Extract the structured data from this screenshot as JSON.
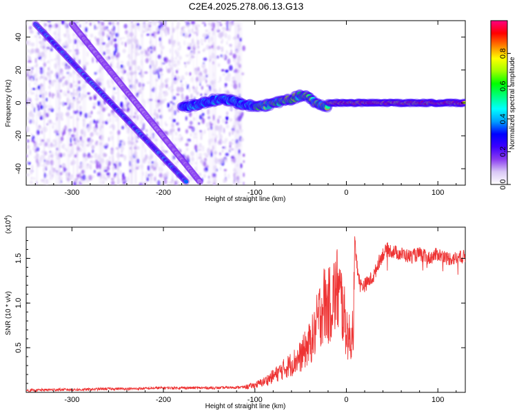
{
  "title": "C2E4.2025.278.06.13.G13",
  "chart_data": [
    {
      "type": "heatmap",
      "xlabel": "Height of straight line (km)",
      "ylabel": "Frequency (Hz)",
      "xlim": [
        -350,
        130
      ],
      "ylim": [
        -50,
        50
      ],
      "x_ticks": [
        -300,
        -200,
        -100,
        0,
        100
      ],
      "y_ticks": [
        -40,
        -20,
        0,
        20,
        40
      ],
      "colorbar": {
        "label": "Normalized spectral amplitude",
        "range": [
          0,
          1
        ],
        "ticks": [
          "0.0",
          "0.2",
          "0.4",
          "0.6",
          "0.8"
        ],
        "colors": [
          "#ffffff",
          "#d9c8f5",
          "#8a3cf0",
          "#3c00ff",
          "#0000ff",
          "#00a0ff",
          "#00ffff",
          "#00ff80",
          "#00ff00",
          "#a0ff00",
          "#ffff00",
          "#ff8000",
          "#ff0000",
          "#ff0080"
        ]
      },
      "features": [
        {
          "name": "primary track",
          "x": [
            -340,
            -175
          ],
          "y": [
            48,
            -48
          ],
          "peak_amplitude": 0.35
        },
        {
          "name": "secondary track",
          "x": [
            -300,
            -160
          ],
          "y": [
            48,
            -48
          ],
          "peak_amplitude": 0.12
        },
        {
          "name": "carrier line",
          "x": [
            -180,
            130
          ],
          "y": [
            0,
            0
          ],
          "peak_amplitude": 1.0
        }
      ],
      "noise_region": {
        "x": [
          -350,
          -112
        ],
        "y": [
          -50,
          50
        ]
      }
    },
    {
      "type": "line",
      "xlabel": "Height of straight line (km)",
      "ylabel": "SNR (10 * v/v)",
      "multiplier": "(x10^4)",
      "multiplier_base": "(x10",
      "multiplier_exp": "4",
      "multiplier_close": ")",
      "xlim": [
        -350,
        130
      ],
      "ylim": [
        0,
        1.85
      ],
      "x_ticks": [
        -300,
        -200,
        -100,
        0,
        100
      ],
      "y_ticks": [
        "0.5",
        "1.0",
        "1.5"
      ],
      "color": "#ee3333",
      "series": [
        {
          "x": [
            -350,
            -320,
            -290,
            -260,
            -230,
            -200,
            -170,
            -140,
            -110,
            -100,
            -90,
            -80,
            -70,
            -60,
            -50,
            -45,
            -40,
            -35,
            -30,
            -25,
            -20,
            -15,
            -10,
            -5,
            0,
            5,
            8,
            10,
            15,
            20,
            25,
            30,
            35,
            40,
            45,
            50,
            60,
            70,
            80,
            90,
            100,
            110,
            120,
            130
          ],
          "y": [
            0.02,
            0.03,
            0.03,
            0.04,
            0.04,
            0.05,
            0.05,
            0.05,
            0.06,
            0.08,
            0.12,
            0.18,
            0.25,
            0.32,
            0.4,
            0.48,
            0.55,
            0.65,
            0.85,
            1.0,
            0.95,
            1.05,
            1.15,
            1.0,
            0.7,
            0.55,
            0.9,
            1.55,
            1.2,
            1.2,
            1.25,
            1.3,
            1.45,
            1.55,
            1.6,
            1.58,
            1.55,
            1.52,
            1.55,
            1.5,
            1.55,
            1.5,
            1.5,
            1.52
          ]
        }
      ]
    }
  ]
}
